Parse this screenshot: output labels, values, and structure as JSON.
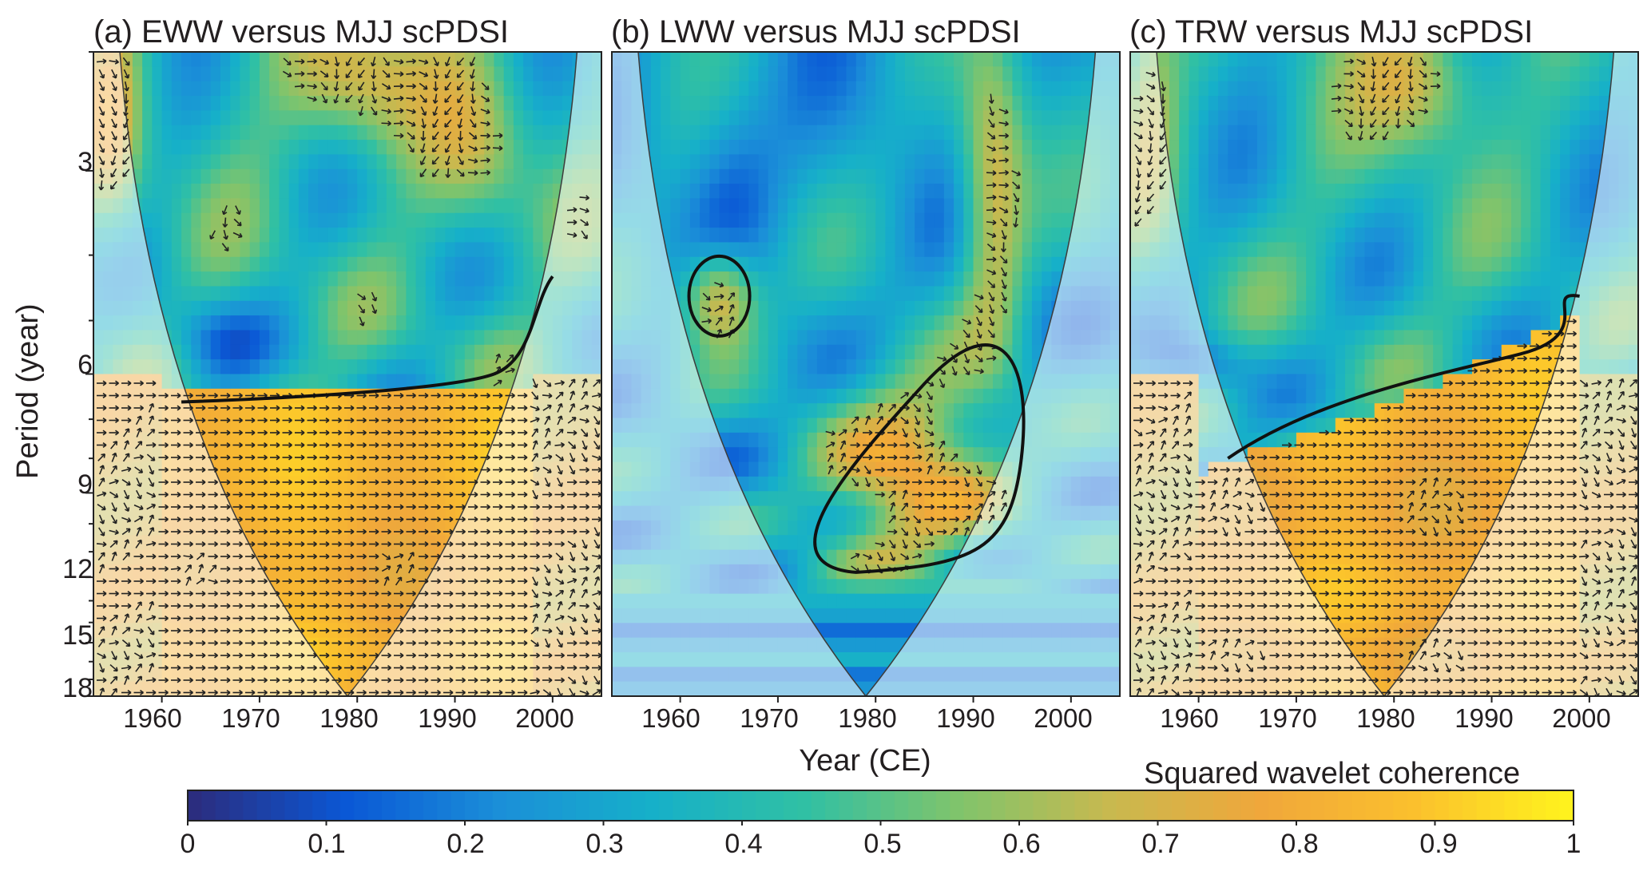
{
  "chart_data": {
    "type": "heatmap",
    "description_type": "wavelet coherence",
    "ylabel": "Period (year)",
    "xlabel": "Year (CE)",
    "y_ticks": [
      3,
      6,
      9,
      12,
      15,
      18
    ],
    "x_ticks": [
      1960,
      1970,
      1980,
      1990,
      2000
    ],
    "xlim": [
      1953,
      2005
    ],
    "ylim": [
      2,
      18
    ],
    "y_scale": "log",
    "colorbar": {
      "label": "Squared wavelet coherence",
      "ticks": [
        "0",
        "0.1",
        "0.2",
        "0.3",
        "0.4",
        "0.5",
        "0.6",
        "0.7",
        "0.8",
        "0.9",
        "1"
      ],
      "range": [
        0,
        1
      ],
      "colors": [
        "#2b2d7f",
        "#0a58d6",
        "#1b8fd8",
        "#16b0c9",
        "#30c0a4",
        "#7fc46c",
        "#c8b94f",
        "#f0a73b",
        "#fbc02d",
        "#fff21e"
      ]
    },
    "panels": [
      {
        "title": "(a) EWW versus MJJ scPDSI",
        "significant_region": "Periods above ~6.2 years across 1962-1997 (cone interior), plus small areas near 1955 and 1977-1986 at 2-3 years",
        "phase": "in-phase (arrows pointing right) in the high-coherence region"
      },
      {
        "title": "(b) LWW versus MJJ scPDSI",
        "significant_region": "Periods ~6-12 years for 1971-1996; ~4-5 years for 1960-1967; 2-5 years around 1991-1995",
        "phase": "mostly in-phase with some lead/lag"
      },
      {
        "title": "(c) TRW versus MJJ scPDSI",
        "significant_region": "Periods above ~5-8 years across 1962-1998 (cone interior)",
        "phase": "in-phase (arrows pointing right) in the high-coherence region"
      }
    ]
  }
}
